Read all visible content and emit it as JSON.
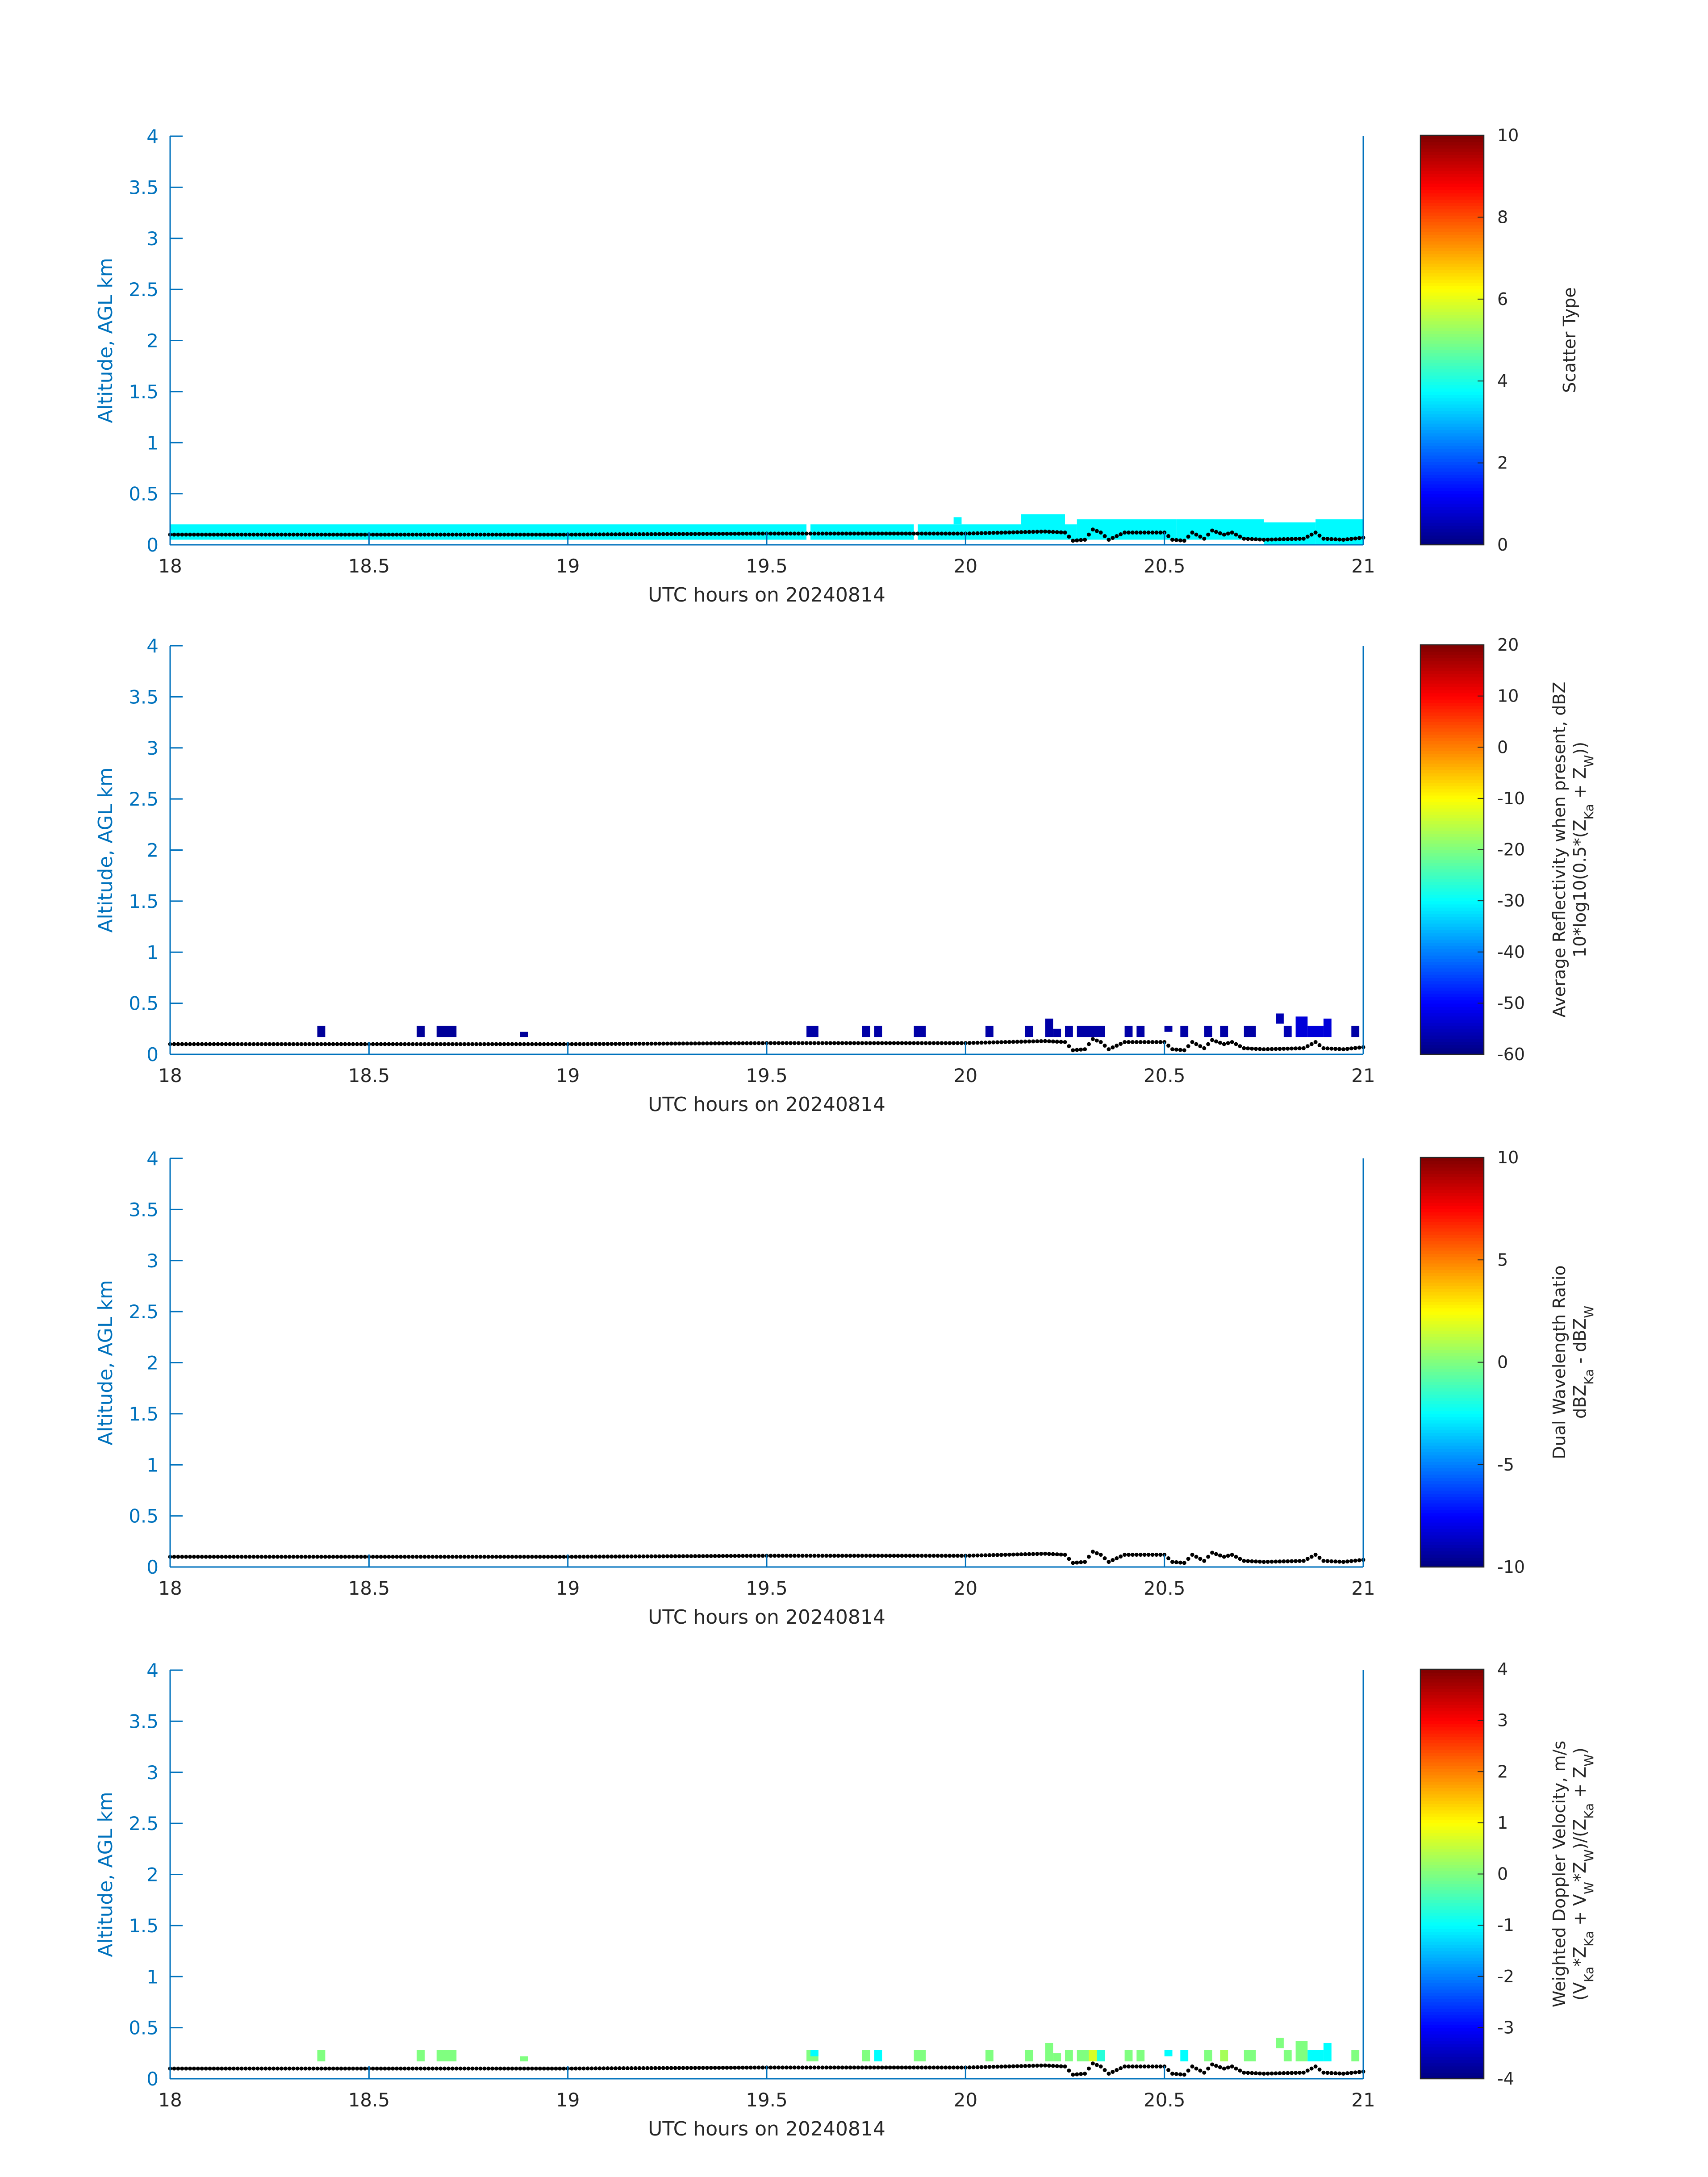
{
  "chart_data": [
    {
      "type": "heatmap",
      "x_label": "UTC hours on 20240814",
      "y_label": "Altitude, AGL km",
      "xlim": [
        18,
        21
      ],
      "ylim": [
        0,
        4
      ],
      "x_ticks": [
        "18",
        "18.5",
        "19",
        "19.5",
        "20",
        "20.5",
        "21"
      ],
      "y_ticks": [
        "0",
        "0.5",
        "1",
        "1.5",
        "2",
        "2.5",
        "3",
        "3.5",
        "4"
      ],
      "colorbar": {
        "label_lines": [
          "Scatter Type"
        ],
        "range": [
          0,
          10
        ],
        "ticks": [
          "0",
          "2",
          "4",
          "6",
          "8",
          "10"
        ]
      },
      "cells": [
        {
          "t0": 18.0,
          "t1": 19.6,
          "h0": 0.05,
          "h1": 0.2,
          "value": 3.7
        },
        {
          "t0": 19.61,
          "t1": 19.87,
          "h0": 0.05,
          "h1": 0.2,
          "value": 3.7
        },
        {
          "t0": 19.88,
          "t1": 20.14,
          "h0": 0.05,
          "h1": 0.2,
          "value": 3.7
        },
        {
          "t0": 19.97,
          "t1": 19.99,
          "h0": 0.2,
          "h1": 0.27,
          "value": 3.7
        },
        {
          "t0": 20.14,
          "t1": 20.25,
          "h0": 0.05,
          "h1": 0.3,
          "value": 3.7
        },
        {
          "t0": 20.25,
          "t1": 20.28,
          "h0": 0.05,
          "h1": 0.2,
          "value": 3.7
        },
        {
          "t0": 20.28,
          "t1": 20.53,
          "h0": 0.05,
          "h1": 0.25,
          "value": 3.7
        },
        {
          "t0": 20.53,
          "t1": 20.75,
          "h0": 0.05,
          "h1": 0.25,
          "value": 3.7
        },
        {
          "t0": 20.75,
          "t1": 20.88,
          "h0": 0.0,
          "h1": 0.22,
          "value": 3.7
        },
        {
          "t0": 20.88,
          "t1": 21.0,
          "h0": 0.0,
          "h1": 0.25,
          "value": 3.7
        }
      ]
    },
    {
      "type": "heatmap",
      "x_label": "UTC hours on 20240814",
      "y_label": "Altitude, AGL km",
      "xlim": [
        18,
        21
      ],
      "ylim": [
        0,
        4
      ],
      "x_ticks": [
        "18",
        "18.5",
        "19",
        "19.5",
        "20",
        "20.5",
        "21"
      ],
      "y_ticks": [
        "0",
        "0.5",
        "1",
        "1.5",
        "2",
        "2.5",
        "3",
        "3.5",
        "4"
      ],
      "colorbar": {
        "label_lines": [
          "Average Reflectivity when present, dBZ",
          "10*log10(0.5*(Z_Ka + Z_W))"
        ],
        "range": [
          -60,
          20
        ],
        "ticks": [
          "-60",
          "-50",
          "-40",
          "-30",
          "-20",
          "-10",
          "0",
          "10",
          "20"
        ]
      },
      "cells": [
        {
          "t0": 18.37,
          "t1": 18.39,
          "h0": 0.17,
          "h1": 0.28,
          "value": -58
        },
        {
          "t0": 18.62,
          "t1": 18.64,
          "h0": 0.17,
          "h1": 0.28,
          "value": -58
        },
        {
          "t0": 18.67,
          "t1": 18.72,
          "h0": 0.17,
          "h1": 0.28,
          "value": -58
        },
        {
          "t0": 18.88,
          "t1": 18.9,
          "h0": 0.17,
          "h1": 0.22,
          "value": -58
        },
        {
          "t0": 19.6,
          "t1": 19.63,
          "h0": 0.17,
          "h1": 0.28,
          "value": -57
        },
        {
          "t0": 19.74,
          "t1": 19.76,
          "h0": 0.17,
          "h1": 0.28,
          "value": -57
        },
        {
          "t0": 19.77,
          "t1": 19.79,
          "h0": 0.17,
          "h1": 0.28,
          "value": -57
        },
        {
          "t0": 19.87,
          "t1": 19.9,
          "h0": 0.17,
          "h1": 0.28,
          "value": -57
        },
        {
          "t0": 20.05,
          "t1": 20.07,
          "h0": 0.17,
          "h1": 0.28,
          "value": -57
        },
        {
          "t0": 20.15,
          "t1": 20.17,
          "h0": 0.17,
          "h1": 0.28,
          "value": -57
        },
        {
          "t0": 20.2,
          "t1": 20.22,
          "h0": 0.17,
          "h1": 0.35,
          "value": -57
        },
        {
          "t0": 20.22,
          "t1": 20.24,
          "h0": 0.17,
          "h1": 0.25,
          "value": -57
        },
        {
          "t0": 20.25,
          "t1": 20.27,
          "h0": 0.17,
          "h1": 0.28,
          "value": -57
        },
        {
          "t0": 20.28,
          "t1": 20.35,
          "h0": 0.17,
          "h1": 0.28,
          "value": -57
        },
        {
          "t0": 20.4,
          "t1": 20.42,
          "h0": 0.17,
          "h1": 0.28,
          "value": -57
        },
        {
          "t0": 20.43,
          "t1": 20.45,
          "h0": 0.17,
          "h1": 0.28,
          "value": -57
        },
        {
          "t0": 20.5,
          "t1": 20.52,
          "h0": 0.22,
          "h1": 0.28,
          "value": -57
        },
        {
          "t0": 20.54,
          "t1": 20.56,
          "h0": 0.17,
          "h1": 0.28,
          "value": -57
        },
        {
          "t0": 20.6,
          "t1": 20.62,
          "h0": 0.17,
          "h1": 0.28,
          "value": -57
        },
        {
          "t0": 20.64,
          "t1": 20.66,
          "h0": 0.17,
          "h1": 0.28,
          "value": -57
        },
        {
          "t0": 20.7,
          "t1": 20.73,
          "h0": 0.17,
          "h1": 0.28,
          "value": -57
        },
        {
          "t0": 20.78,
          "t1": 20.8,
          "h0": 0.3,
          "h1": 0.4,
          "value": -56
        },
        {
          "t0": 20.8,
          "t1": 20.82,
          "h0": 0.17,
          "h1": 0.28,
          "value": -56
        },
        {
          "t0": 20.83,
          "t1": 20.86,
          "h0": 0.17,
          "h1": 0.37,
          "value": -53
        },
        {
          "t0": 20.86,
          "t1": 20.9,
          "h0": 0.17,
          "h1": 0.28,
          "value": -53
        },
        {
          "t0": 20.9,
          "t1": 20.92,
          "h0": 0.17,
          "h1": 0.35,
          "value": -53
        },
        {
          "t0": 20.97,
          "t1": 20.99,
          "h0": 0.17,
          "h1": 0.28,
          "value": -57
        }
      ]
    },
    {
      "type": "heatmap",
      "x_label": "UTC hours on 20240814",
      "y_label": "Altitude, AGL km",
      "xlim": [
        18,
        21
      ],
      "ylim": [
        0,
        4
      ],
      "x_ticks": [
        "18",
        "18.5",
        "19",
        "19.5",
        "20",
        "20.5",
        "21"
      ],
      "y_ticks": [
        "0",
        "0.5",
        "1",
        "1.5",
        "2",
        "2.5",
        "3",
        "3.5",
        "4"
      ],
      "colorbar": {
        "label_lines": [
          "Dual Wavelength Ratio",
          "dBZ_Ka - dBZ_W"
        ],
        "range": [
          -10,
          10
        ],
        "ticks": [
          "-10",
          "-5",
          "0",
          "5",
          "10"
        ]
      },
      "cells": []
    },
    {
      "type": "heatmap",
      "x_label": "UTC hours on 20240814",
      "y_label": "Altitude, AGL km",
      "xlim": [
        18,
        21
      ],
      "ylim": [
        0,
        4
      ],
      "x_ticks": [
        "18",
        "18.5",
        "19",
        "19.5",
        "20",
        "20.5",
        "21"
      ],
      "y_ticks": [
        "0",
        "0.5",
        "1",
        "1.5",
        "2",
        "2.5",
        "3",
        "3.5",
        "4"
      ],
      "colorbar": {
        "label_lines": [
          "Weighted Doppler Velocity, m/s",
          "(V_Ka*Z_Ka + V_W*Z_W)/(Z_Ka + Z_W)"
        ],
        "range": [
          -4,
          4
        ],
        "ticks": [
          "-4",
          "-3",
          "-2",
          "-1",
          "0",
          "1",
          "2",
          "3",
          "4"
        ]
      },
      "cells": [
        {
          "t0": 18.37,
          "t1": 18.39,
          "h0": 0.17,
          "h1": 0.28,
          "value": 0.0
        },
        {
          "t0": 18.62,
          "t1": 18.64,
          "h0": 0.17,
          "h1": 0.28,
          "value": 0.0
        },
        {
          "t0": 18.67,
          "t1": 18.72,
          "h0": 0.17,
          "h1": 0.28,
          "value": 0.0
        },
        {
          "t0": 18.88,
          "t1": 18.9,
          "h0": 0.17,
          "h1": 0.22,
          "value": 0.0
        },
        {
          "t0": 19.6,
          "t1": 19.63,
          "h0": 0.17,
          "h1": 0.28,
          "value": 0.0
        },
        {
          "t0": 19.61,
          "t1": 19.63,
          "h0": 0.22,
          "h1": 0.28,
          "value": -1.0
        },
        {
          "t0": 19.74,
          "t1": 19.76,
          "h0": 0.17,
          "h1": 0.28,
          "value": 0.0
        },
        {
          "t0": 19.77,
          "t1": 19.79,
          "h0": 0.17,
          "h1": 0.28,
          "value": -1.0
        },
        {
          "t0": 19.87,
          "t1": 19.9,
          "h0": 0.17,
          "h1": 0.28,
          "value": 0.0
        },
        {
          "t0": 20.05,
          "t1": 20.07,
          "h0": 0.17,
          "h1": 0.28,
          "value": 0.0
        },
        {
          "t0": 20.15,
          "t1": 20.17,
          "h0": 0.17,
          "h1": 0.28,
          "value": 0.0
        },
        {
          "t0": 20.2,
          "t1": 20.22,
          "h0": 0.17,
          "h1": 0.35,
          "value": 0.0
        },
        {
          "t0": 20.22,
          "t1": 20.24,
          "h0": 0.17,
          "h1": 0.25,
          "value": 0.0
        },
        {
          "t0": 20.25,
          "t1": 20.27,
          "h0": 0.17,
          "h1": 0.28,
          "value": 0.0
        },
        {
          "t0": 20.28,
          "t1": 20.31,
          "h0": 0.17,
          "h1": 0.28,
          "value": 0.0
        },
        {
          "t0": 20.31,
          "t1": 20.33,
          "h0": 0.17,
          "h1": 0.28,
          "value": 0.7
        },
        {
          "t0": 20.33,
          "t1": 20.35,
          "h0": 0.17,
          "h1": 0.28,
          "value": -0.7
        },
        {
          "t0": 20.4,
          "t1": 20.42,
          "h0": 0.17,
          "h1": 0.28,
          "value": 0.0
        },
        {
          "t0": 20.43,
          "t1": 20.45,
          "h0": 0.17,
          "h1": 0.28,
          "value": 0.0
        },
        {
          "t0": 20.5,
          "t1": 20.52,
          "h0": 0.22,
          "h1": 0.28,
          "value": -1.0
        },
        {
          "t0": 20.54,
          "t1": 20.56,
          "h0": 0.17,
          "h1": 0.28,
          "value": -1.0
        },
        {
          "t0": 20.6,
          "t1": 20.62,
          "h0": 0.17,
          "h1": 0.28,
          "value": 0.0
        },
        {
          "t0": 20.64,
          "t1": 20.66,
          "h0": 0.17,
          "h1": 0.28,
          "value": 0.3
        },
        {
          "t0": 20.7,
          "t1": 20.73,
          "h0": 0.17,
          "h1": 0.28,
          "value": 0.0
        },
        {
          "t0": 20.78,
          "t1": 20.8,
          "h0": 0.3,
          "h1": 0.4,
          "value": 0.0
        },
        {
          "t0": 20.8,
          "t1": 20.82,
          "h0": 0.17,
          "h1": 0.28,
          "value": 0.0
        },
        {
          "t0": 20.83,
          "t1": 20.86,
          "h0": 0.17,
          "h1": 0.37,
          "value": 0.0
        },
        {
          "t0": 20.86,
          "t1": 20.9,
          "h0": 0.17,
          "h1": 0.28,
          "value": -1.0
        },
        {
          "t0": 20.9,
          "t1": 20.92,
          "h0": 0.17,
          "h1": 0.35,
          "value": -1.0
        },
        {
          "t0": 20.97,
          "t1": 20.99,
          "h0": 0.17,
          "h1": 0.28,
          "value": 0.0
        }
      ]
    }
  ],
  "ground_line": {
    "style": "black dotted",
    "t": [
      18.0,
      18.5,
      19.0,
      19.5,
      20.0,
      20.2,
      20.25,
      20.27,
      20.3,
      20.32,
      20.34,
      20.36,
      20.4,
      20.5,
      20.52,
      20.55,
      20.57,
      20.6,
      20.62,
      20.65,
      20.67,
      20.7,
      20.75,
      20.85,
      20.88,
      20.9,
      20.95,
      21.0
    ],
    "h": [
      0.1,
      0.1,
      0.1,
      0.11,
      0.11,
      0.13,
      0.12,
      0.04,
      0.05,
      0.15,
      0.12,
      0.05,
      0.12,
      0.12,
      0.05,
      0.04,
      0.12,
      0.06,
      0.14,
      0.1,
      0.12,
      0.06,
      0.05,
      0.06,
      0.12,
      0.06,
      0.05,
      0.07
    ]
  }
}
